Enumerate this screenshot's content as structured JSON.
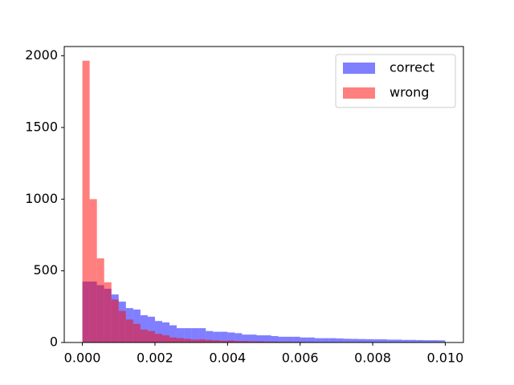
{
  "chart_data": {
    "type": "histogram",
    "bins": [
      0,
      0.0002,
      0.0004,
      0.0006,
      0.0008,
      0.001,
      0.0012,
      0.0014,
      0.0016,
      0.0018,
      0.002,
      0.0022,
      0.0024,
      0.0026,
      0.0028,
      0.003,
      0.0032,
      0.0034,
      0.0036,
      0.0038,
      0.004,
      0.0042,
      0.0044,
      0.0046,
      0.0048,
      0.005,
      0.0052,
      0.0054,
      0.0056,
      0.0058,
      0.006,
      0.0062,
      0.0064,
      0.0066,
      0.0068,
      0.007,
      0.0072,
      0.0074,
      0.0076,
      0.0078,
      0.008,
      0.0082,
      0.0084,
      0.0086,
      0.0088,
      0.009,
      0.0092,
      0.0094,
      0.0096,
      0.0098,
      0.01
    ],
    "series": [
      {
        "name": "correct",
        "color": "#0000ff",
        "values": [
          425,
          425,
          400,
          375,
          335,
          285,
          240,
          230,
          190,
          180,
          150,
          140,
          120,
          100,
          100,
          100,
          100,
          80,
          75,
          75,
          70,
          65,
          55,
          55,
          50,
          50,
          45,
          40,
          40,
          40,
          35,
          35,
          30,
          30,
          30,
          28,
          26,
          25,
          24,
          23,
          22,
          22,
          20,
          20,
          18,
          18,
          17,
          16,
          16,
          15
        ]
      },
      {
        "name": "wrong",
        "color": "#ff0000",
        "values": [
          1966,
          1000,
          587,
          420,
          300,
          220,
          160,
          130,
          90,
          80,
          60,
          50,
          35,
          30,
          25,
          20,
          22,
          18,
          15,
          12,
          14,
          10,
          10,
          8,
          8,
          6,
          6,
          5,
          5,
          4,
          4,
          4,
          3,
          3,
          3,
          3,
          2,
          2,
          2,
          2,
          2,
          1,
          1,
          1,
          1,
          1,
          1,
          1,
          1,
          1
        ]
      }
    ],
    "alpha": 0.5,
    "xlim": [
      -0.0005,
      0.0105
    ],
    "ylim": [
      0,
      2065
    ],
    "xticks": [
      {
        "value": 0,
        "label": "0.000"
      },
      {
        "value": 0.002,
        "label": "0.002"
      },
      {
        "value": 0.004,
        "label": "0.004"
      },
      {
        "value": 0.006,
        "label": "0.006"
      },
      {
        "value": 0.008,
        "label": "0.008"
      },
      {
        "value": 0.01,
        "label": "0.010"
      }
    ],
    "yticks": [
      0,
      500,
      1000,
      1500,
      2000
    ],
    "legend": "upper right"
  }
}
